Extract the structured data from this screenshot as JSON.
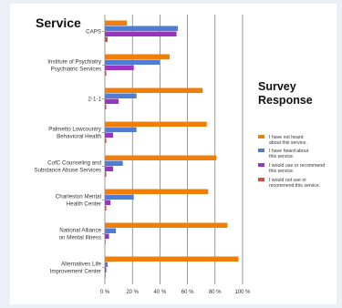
{
  "chart_data": {
    "type": "bar",
    "orientation": "horizontal",
    "title": "Service",
    "legend_title": "Survey Response",
    "legend_position": "right",
    "xlabel": "",
    "ylabel": "",
    "xlim": [
      0,
      100
    ],
    "x_ticks": [
      "0 %",
      "20 %",
      "40 %",
      "60 %",
      "80 %",
      "100 %"
    ],
    "grid": true,
    "categories": [
      [
        "CAPS"
      ],
      [
        "Institute of Psychiatry",
        "Psychiatric Services"
      ],
      [
        "2-1-1"
      ],
      [
        "Palmetto Lowcountry",
        "Behavioral Health"
      ],
      [
        "CofC Counseling and",
        "Substance Abuse Services"
      ],
      [
        "Charleston Mental",
        "Health Center"
      ],
      [
        "National Alliance",
        "on Mental Illness"
      ],
      [
        "Alternatives Life",
        "Improvement Center"
      ]
    ],
    "series": [
      {
        "name": [
          "I have not heard",
          "about this service."
        ],
        "color": "#f07f0a",
        "values": [
          16,
          47,
          71,
          74,
          81,
          75,
          89,
          97
        ]
      },
      {
        "name": [
          "I have heard about",
          "this service."
        ],
        "color": "#4e7dd3",
        "values": [
          53,
          40,
          23,
          23,
          13,
          21,
          8,
          2
        ]
      },
      {
        "name": [
          "I would use or recommend",
          "this service."
        ],
        "color": "#9a32c2",
        "values": [
          52,
          21,
          10,
          6,
          6,
          4,
          3,
          1
        ]
      },
      {
        "name": [
          "I would not use or",
          "recommend this service."
        ],
        "color": "#e0483a",
        "values": [
          2,
          1,
          1,
          1,
          1,
          1,
          0.5,
          0.5
        ]
      }
    ]
  }
}
